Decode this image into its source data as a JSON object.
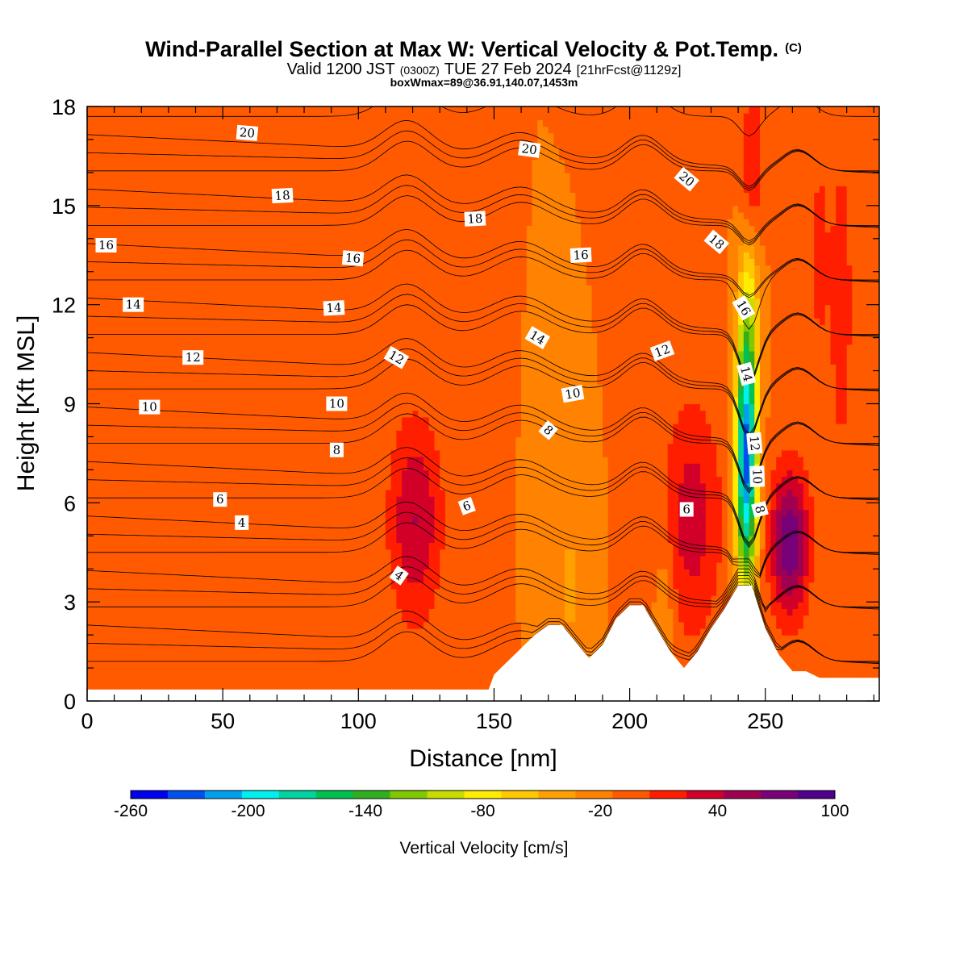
{
  "title": {
    "main": "Wind-Parallel Section at Max W: Vertical Velocity & Pot.Temp.",
    "copyright": "(C)",
    "valid_prefix": "Valid 1200 JST",
    "valid_utc": "(0300Z)",
    "valid_date": "TUE 27 Feb 2024",
    "forecast": "[21hrFcst@1129z]",
    "boxwmax": "boxWmax=89@36.91,140.07,1453m"
  },
  "chart_data": {
    "type": "heatmap",
    "xlabel": "Distance [nm]",
    "ylabel": "Height [Kft MSL]",
    "xlim": [
      0,
      292
    ],
    "ylim": [
      0,
      18
    ],
    "x_ticks": [
      0,
      50,
      100,
      150,
      200,
      250
    ],
    "y_ticks": [
      0,
      3,
      6,
      9,
      12,
      15,
      18
    ],
    "colorbar": {
      "label": "Vertical Velocity [cm/s]",
      "tick_labels": [
        "-260",
        "-200",
        "-140",
        "-80",
        "-20",
        "40",
        "100"
      ],
      "levels": [
        -260,
        -240,
        -220,
        -200,
        -180,
        -160,
        -140,
        -120,
        -100,
        -80,
        -60,
        -40,
        -20,
        0,
        20,
        40,
        60,
        80,
        100
      ],
      "colors": [
        "#0000f0",
        "#0050f0",
        "#00a0f0",
        "#00f0f0",
        "#00d2a0",
        "#00c050",
        "#30b020",
        "#80c800",
        "#c8dc00",
        "#ffec00",
        "#ffc800",
        "#ffa000",
        "#ff8200",
        "#ff5a00",
        "#ff1e00",
        "#d20028",
        "#a00050",
        "#780078",
        "#50008c"
      ]
    },
    "background_velocity_cms": 0,
    "terrain_kft": [
      [
        0,
        0.35
      ],
      [
        148,
        0.35
      ],
      [
        150,
        0.8
      ],
      [
        155,
        1.2
      ],
      [
        160,
        1.6
      ],
      [
        165,
        2.0
      ],
      [
        170,
        2.3
      ],
      [
        175,
        2.3
      ],
      [
        180,
        1.8
      ],
      [
        185,
        1.3
      ],
      [
        190,
        1.7
      ],
      [
        195,
        2.5
      ],
      [
        200,
        2.9
      ],
      [
        205,
        2.9
      ],
      [
        210,
        2.2
      ],
      [
        215,
        1.5
      ],
      [
        220,
        1.0
      ],
      [
        225,
        1.5
      ],
      [
        230,
        2.2
      ],
      [
        235,
        2.8
      ],
      [
        240,
        3.5
      ],
      [
        245,
        3.5
      ],
      [
        250,
        2.2
      ],
      [
        255,
        1.4
      ],
      [
        260,
        0.9
      ],
      [
        265,
        0.9
      ],
      [
        270,
        0.7
      ],
      [
        292,
        0.7
      ]
    ],
    "velocity_cells": [
      {
        "x": 121,
        "h": 5.5,
        "sx": 7,
        "sh": 2.2,
        "w": 60
      },
      {
        "x": 223,
        "h": 5.5,
        "sx": 8,
        "sh": 2.6,
        "w": 50
      },
      {
        "x": 243,
        "h": 10.5,
        "sx": 4,
        "sh": 2.2,
        "w": 30
      },
      {
        "x": 245,
        "h": 16.0,
        "sx": 3,
        "sh": 1.8,
        "w": 45
      },
      {
        "x": 259,
        "h": 4.8,
        "sx": 5,
        "sh": 1.6,
        "w": 100
      },
      {
        "x": 243,
        "h": 7.5,
        "sx": 2.8,
        "sh": 2.8,
        "w": -240
      },
      {
        "x": 244,
        "h": 12.0,
        "sx": 3,
        "sh": 2,
        "w": -60
      },
      {
        "x": 20,
        "h": 1.0,
        "sx": 30,
        "sh": 1.8,
        "w": 15
      },
      {
        "x": 178,
        "h": 3.5,
        "sx": 4,
        "sh": 1.8,
        "w": -25
      },
      {
        "x": 213,
        "h": 3.0,
        "sx": 2.5,
        "sh": 1.5,
        "w": -25
      },
      {
        "x": 278,
        "h": 12.0,
        "sx": 3,
        "sh": 3.5,
        "w": 35
      },
      {
        "x": 270,
        "h": 13.5,
        "sx": 2.5,
        "sh": 2.5,
        "w": 28
      }
    ],
    "theta_contour_labels": [
      {
        "text": "20",
        "x": 59,
        "h": 17.2,
        "angle": 5
      },
      {
        "text": "20",
        "x": 163,
        "h": 16.7,
        "angle": 8
      },
      {
        "text": "20",
        "x": 221,
        "h": 15.8,
        "angle": 40
      },
      {
        "text": "18",
        "x": 72,
        "h": 15.3,
        "angle": -3
      },
      {
        "text": "18",
        "x": 143,
        "h": 14.6,
        "angle": -3
      },
      {
        "text": "18",
        "x": 232,
        "h": 13.9,
        "angle": 40
      },
      {
        "text": "16",
        "x": 7,
        "h": 13.8,
        "angle": 0
      },
      {
        "text": "16",
        "x": 98,
        "h": 13.4,
        "angle": 5
      },
      {
        "text": "16",
        "x": 182,
        "h": 13.5,
        "angle": -3
      },
      {
        "text": "16",
        "x": 242,
        "h": 11.9,
        "angle": 60
      },
      {
        "text": "14",
        "x": 17,
        "h": 12.0,
        "angle": 0
      },
      {
        "text": "14",
        "x": 91,
        "h": 11.9,
        "angle": -3
      },
      {
        "text": "14",
        "x": 166,
        "h": 11.0,
        "angle": 30
      },
      {
        "text": "14",
        "x": 243,
        "h": 9.9,
        "angle": 75
      },
      {
        "text": "12",
        "x": 39,
        "h": 10.4,
        "angle": 0
      },
      {
        "text": "12",
        "x": 114,
        "h": 10.4,
        "angle": 30
      },
      {
        "text": "12",
        "x": 212,
        "h": 10.6,
        "angle": -20
      },
      {
        "text": "12",
        "x": 246,
        "h": 7.8,
        "angle": 85
      },
      {
        "text": "10",
        "x": 23,
        "h": 8.9,
        "angle": 0
      },
      {
        "text": "10",
        "x": 92,
        "h": 9.0,
        "angle": 0
      },
      {
        "text": "10",
        "x": 179,
        "h": 9.3,
        "angle": -10
      },
      {
        "text": "10",
        "x": 247,
        "h": 6.8,
        "angle": 88
      },
      {
        "text": "8",
        "x": 92,
        "h": 7.6,
        "angle": 0
      },
      {
        "text": "8",
        "x": 170,
        "h": 8.2,
        "angle": 40
      },
      {
        "text": "8",
        "x": 248,
        "h": 5.8,
        "angle": 75
      },
      {
        "text": "6",
        "x": 49,
        "h": 6.1,
        "angle": 0
      },
      {
        "text": "6",
        "x": 140,
        "h": 5.9,
        "angle": -20
      },
      {
        "text": "6",
        "x": 221,
        "h": 5.8,
        "angle": 0
      },
      {
        "text": "4",
        "x": 57,
        "h": 5.4,
        "angle": 0
      },
      {
        "text": "4",
        "x": 115,
        "h": 3.8,
        "angle": 35
      }
    ]
  }
}
